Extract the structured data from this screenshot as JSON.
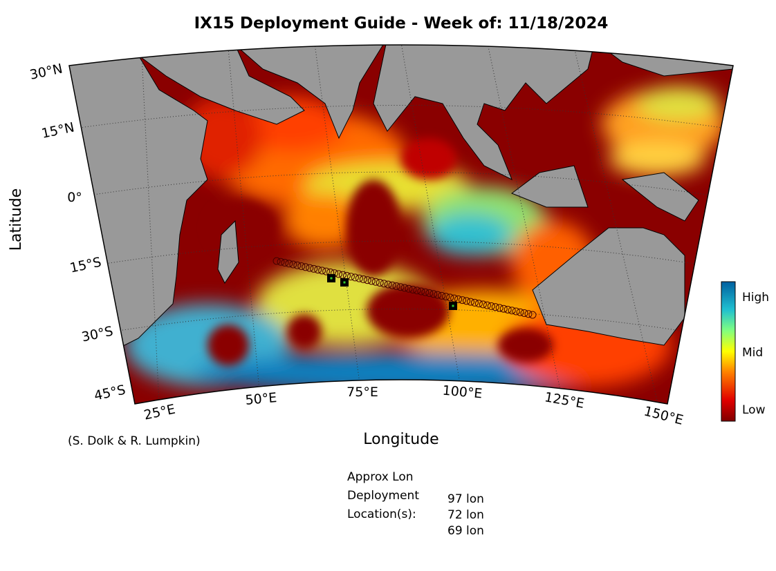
{
  "title": "IX15 Deployment Guide - Week of: 11/18/2024",
  "x_axis_label": "Longitude",
  "y_axis_label": "Latitude",
  "lat_ticks": [
    "30°N",
    "15°N",
    "0°",
    "15°S",
    "30°S",
    "45°S"
  ],
  "lon_ticks": [
    "25°E",
    "50°E",
    "75°E",
    "100°E",
    "125°E",
    "150°E"
  ],
  "colorbar": {
    "labels": [
      "High",
      "Mid",
      "Low"
    ]
  },
  "credit": "(S. Dolk & R. Lumpkin)",
  "deployment": {
    "heading": [
      "Approx Lon",
      "Deployment",
      "Location(s):"
    ],
    "locations": [
      "97 lon",
      "72 lon",
      "69 lon"
    ]
  }
}
